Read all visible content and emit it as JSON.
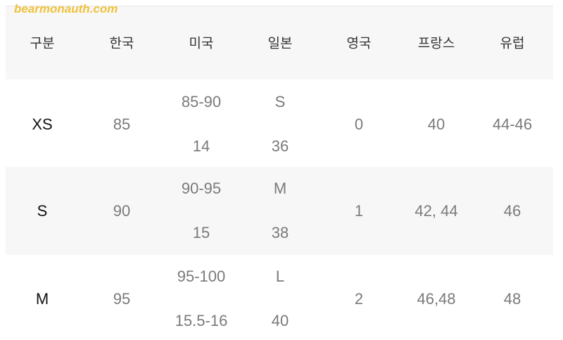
{
  "watermark": "bearmonauth.com",
  "headers": [
    "구분",
    "한국",
    "미국",
    "일본",
    "영국",
    "프랑스",
    "유럽"
  ],
  "rows": [
    {
      "size": "XS",
      "kr": "85",
      "us": [
        "85-90",
        "14"
      ],
      "jp": [
        "S",
        "36"
      ],
      "uk": "0",
      "fr": "40",
      "eu": "44-46"
    },
    {
      "size": "S",
      "kr": "90",
      "us": [
        "90-95",
        "15"
      ],
      "jp": [
        "M",
        "38"
      ],
      "uk": "1",
      "fr": "42, 44",
      "eu": "46"
    },
    {
      "size": "M",
      "kr": "95",
      "us": [
        "95-100",
        "15.5-16"
      ],
      "jp": [
        "L",
        "40"
      ],
      "uk": "2",
      "fr": "46,48",
      "eu": "48"
    }
  ]
}
